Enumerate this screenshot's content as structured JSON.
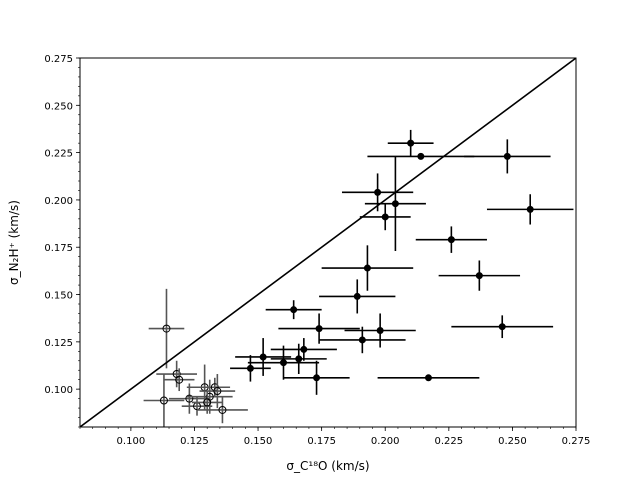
{
  "chart_data": {
    "type": "scatter",
    "title": "",
    "xlabel": "σ_C¹⁸O (km/s)",
    "ylabel": "σ_N₂H⁺ (km/s)",
    "xlim": [
      0.08,
      0.275
    ],
    "ylim": [
      0.08,
      0.275
    ],
    "x_ticks": [
      0.1,
      0.125,
      0.15,
      0.175,
      0.2,
      0.225,
      0.25,
      0.275
    ],
    "y_ticks": [
      0.1,
      0.125,
      0.15,
      0.175,
      0.2,
      0.225,
      0.25,
      0.275
    ],
    "x_tick_labels": [
      "0.100",
      "0.125",
      "0.150",
      "0.175",
      "0.200",
      "0.225",
      "0.250",
      "0.275"
    ],
    "y_tick_labels": [
      "0.100",
      "0.125",
      "0.150",
      "0.175",
      "0.200",
      "0.225",
      "0.250",
      "0.275"
    ],
    "grid": false,
    "reference_line": {
      "slope": 1,
      "intercept": 0,
      "color": "#000000"
    },
    "series": [
      {
        "marker": "filled",
        "color": "#000000",
        "points": [
          {
            "x": 0.21,
            "y": 0.23,
            "xerr": 0.009,
            "yerr": 0.007
          },
          {
            "x": 0.214,
            "y": 0.223,
            "xerr": 0.021,
            "yerr": 0.0
          },
          {
            "x": 0.248,
            "y": 0.223,
            "xerr": 0.017,
            "yerr": 0.009
          },
          {
            "x": 0.197,
            "y": 0.204,
            "xerr": 0.014,
            "yerr": 0.01
          },
          {
            "x": 0.204,
            "y": 0.198,
            "xerr": 0.012,
            "yerr": 0.025
          },
          {
            "x": 0.2,
            "y": 0.191,
            "xerr": 0.01,
            "yerr": 0.007
          },
          {
            "x": 0.257,
            "y": 0.195,
            "xerr": 0.017,
            "yerr": 0.008
          },
          {
            "x": 0.226,
            "y": 0.179,
            "xerr": 0.014,
            "yerr": 0.007
          },
          {
            "x": 0.193,
            "y": 0.164,
            "xerr": 0.018,
            "yerr": 0.012
          },
          {
            "x": 0.237,
            "y": 0.16,
            "xerr": 0.016,
            "yerr": 0.008
          },
          {
            "x": 0.189,
            "y": 0.149,
            "xerr": 0.015,
            "yerr": 0.009
          },
          {
            "x": 0.164,
            "y": 0.142,
            "xerr": 0.011,
            "yerr": 0.005
          },
          {
            "x": 0.174,
            "y": 0.132,
            "xerr": 0.016,
            "yerr": 0.008
          },
          {
            "x": 0.198,
            "y": 0.131,
            "xerr": 0.014,
            "yerr": 0.009
          },
          {
            "x": 0.246,
            "y": 0.133,
            "xerr": 0.02,
            "yerr": 0.006
          },
          {
            "x": 0.191,
            "y": 0.126,
            "xerr": 0.017,
            "yerr": 0.007
          },
          {
            "x": 0.168,
            "y": 0.121,
            "xerr": 0.013,
            "yerr": 0.006
          },
          {
            "x": 0.152,
            "y": 0.117,
            "xerr": 0.011,
            "yerr": 0.01
          },
          {
            "x": 0.16,
            "y": 0.114,
            "xerr": 0.014,
            "yerr": 0.009
          },
          {
            "x": 0.166,
            "y": 0.116,
            "xerr": 0.011,
            "yerr": 0.008
          },
          {
            "x": 0.147,
            "y": 0.111,
            "xerr": 0.008,
            "yerr": 0.007
          },
          {
            "x": 0.173,
            "y": 0.106,
            "xerr": 0.013,
            "yerr": 0.009
          },
          {
            "x": 0.217,
            "y": 0.106,
            "xerr": 0.02,
            "yerr": 0.0
          }
        ]
      },
      {
        "marker": "open",
        "color": "#555555",
        "points": [
          {
            "x": 0.114,
            "y": 0.132,
            "xerr": 0.007,
            "yerr": 0.021
          },
          {
            "x": 0.118,
            "y": 0.108,
            "xerr": 0.008,
            "yerr": 0.007
          },
          {
            "x": 0.119,
            "y": 0.105,
            "xerr": 0.006,
            "yerr": 0.006
          },
          {
            "x": 0.123,
            "y": 0.095,
            "xerr": 0.008,
            "yerr": 0.008
          },
          {
            "x": 0.113,
            "y": 0.094,
            "xerr": 0.008,
            "yerr": 0.014
          },
          {
            "x": 0.126,
            "y": 0.091,
            "xerr": 0.006,
            "yerr": 0.005
          },
          {
            "x": 0.129,
            "y": 0.101,
            "xerr": 0.007,
            "yerr": 0.012
          },
          {
            "x": 0.131,
            "y": 0.096,
            "xerr": 0.009,
            "yerr": 0.009
          },
          {
            "x": 0.133,
            "y": 0.101,
            "xerr": 0.006,
            "yerr": 0.005
          },
          {
            "x": 0.134,
            "y": 0.099,
            "xerr": 0.007,
            "yerr": 0.009
          },
          {
            "x": 0.13,
            "y": 0.093,
            "xerr": 0.006,
            "yerr": 0.006
          },
          {
            "x": 0.136,
            "y": 0.089,
            "xerr": 0.01,
            "yerr": 0.007
          }
        ]
      }
    ]
  }
}
